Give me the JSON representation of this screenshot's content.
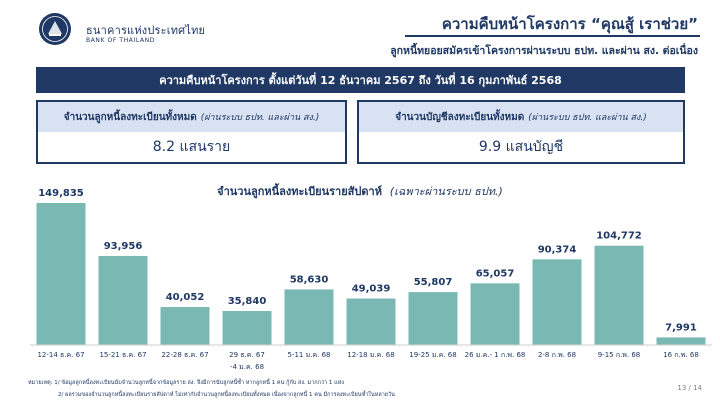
{
  "header": {
    "bank_name_th": "ธนาคารแห่งประเทศไทย",
    "bank_name_en": "BANK OF THAILAND",
    "title": "ความคืบหน้าโครงการ “คุณสู้ เราช่วย”",
    "subtitle": "ลูกหนี้ทยอยสมัครเข้าโครงการผ่านระบบ ธปท. และผ่าน สง. ต่อเนื่อง"
  },
  "banner": "ความคืบหน้าโครงการ ตั้งแต่วันที่ 12 ธันวาคม 2567 ถึง วันที่ 16 กุมภาพันธ์ 2568",
  "cards": [
    {
      "title": "จำนวนลูกหนี้ลงทะเบียนทั้งหมด",
      "note": "(ผ่านระบบ ธปท. และผ่าน สง.)",
      "value": "8.2 แสนราย"
    },
    {
      "title": "จำนวนบัญชีลงทะเบียนทั้งหมด",
      "note": "(ผ่านระบบ ธปท. และผ่าน สง.)",
      "value": "9.9 แสนบัญชี"
    }
  ],
  "colors": {
    "navy": "#1f3864",
    "bar": "#7ab8b3",
    "card_header": "#d9e2f3"
  },
  "chart_data": {
    "type": "bar",
    "title": "จำนวนลูกหนี้ลงทะเบียนรายสัปดาห์",
    "title_note": "(เฉพาะผ่านระบบ ธปท.)",
    "categories": [
      [
        "12-14 ธ.ค. 67"
      ],
      [
        "15-21 ธ.ค. 67"
      ],
      [
        "22-28 ธ.ค. 67"
      ],
      [
        "29 ธ.ค. 67",
        "-4 ม.ค. 68"
      ],
      [
        "5-11 ม.ค. 68"
      ],
      [
        "12-18 ม.ค. 68"
      ],
      [
        "19-25 ม.ค. 68"
      ],
      [
        "26 ม.ค.- 1 ก.พ. 68"
      ],
      [
        "2-8 ก.พ. 68"
      ],
      [
        "9-15 ก.พ. 68"
      ],
      [
        "16 ก.พ. 68"
      ]
    ],
    "values": [
      149835,
      93956,
      40052,
      35840,
      58630,
      49039,
      55807,
      65057,
      90374,
      104772,
      7991
    ],
    "value_labels": [
      "149,835",
      "93,956",
      "40,052",
      "35,840",
      "58,630",
      "49,039",
      "55,807",
      "65,057",
      "90,374",
      "104,772",
      "7,991"
    ],
    "ylim": [
      0,
      149835
    ],
    "grid": false,
    "legend": "none"
  },
  "footnotes": {
    "line1": "หมายเหตุ: 1/ ข้อมูลลูกหนี้ลงทะเบียนนับจำนวนลูกหนี้จากข้อมูลราย สง. จึงมีการนับลูกหนี้ซ้ำ หากลูกหนี้ 1 คน กู้กับ สง. มากกว่า 1 แห่ง",
    "line2": "2/ ผลรวมของจำนวนลูกหนี้ลงทะเบียนรายสัปดาห์ ไม่เท่ากับจำนวนลูกหนี้ลงทะเบียนทั้งหมด เนื่องจากลูกหนี้ 1 คน มีการลงทะเบียนซ้ำในหลายวัน"
  },
  "page_number": "13 / 14"
}
